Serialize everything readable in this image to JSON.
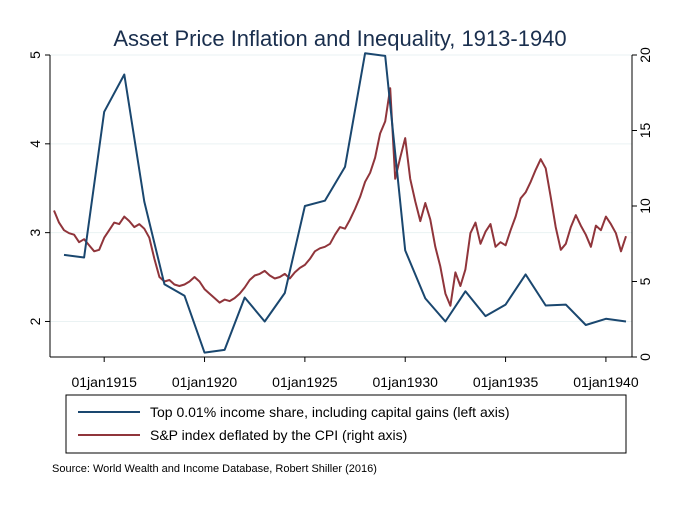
{
  "chart_data": {
    "type": "line",
    "title": "Asset Price Inflation and Inequality, 1913-1940",
    "x_range": [
      1912.3,
      1941.3
    ],
    "x_ticks": [
      {
        "value": 1915,
        "label": "01jan1915"
      },
      {
        "value": 1920,
        "label": "01jan1920"
      },
      {
        "value": 1925,
        "label": "01jan1925"
      },
      {
        "value": 1930,
        "label": "01jan1930"
      },
      {
        "value": 1935,
        "label": "01jan1935"
      },
      {
        "value": 1940,
        "label": "01jan1940"
      }
    ],
    "y_left": {
      "ylim": [
        1.6,
        5.0
      ],
      "ticks": [
        2,
        3,
        4,
        5
      ]
    },
    "y_right": {
      "ylim": [
        0,
        20
      ],
      "ticks": [
        0,
        5,
        10,
        15,
        20
      ]
    },
    "grid": true,
    "legend_position": "bottom",
    "series": [
      {
        "name": "Top 0.01% income share, including capital gains (left axis)",
        "axis": "left",
        "color": "#1a476f",
        "x": [
          1913,
          1914,
          1915,
          1916,
          1917,
          1918,
          1919,
          1920,
          1921,
          1922,
          1923,
          1924,
          1925,
          1926,
          1927,
          1928,
          1929,
          1930,
          1931,
          1932,
          1933,
          1934,
          1935,
          1936,
          1937,
          1938,
          1939,
          1940,
          1941
        ],
        "values": [
          2.75,
          2.72,
          4.36,
          4.78,
          3.35,
          2.42,
          2.29,
          1.65,
          1.68,
          2.27,
          2.0,
          2.32,
          3.3,
          3.36,
          3.74,
          5.02,
          4.99,
          2.8,
          2.26,
          2.0,
          2.34,
          2.06,
          2.19,
          2.53,
          2.18,
          2.19,
          1.96,
          2.03,
          2.0
        ]
      },
      {
        "name": "S&P index deflated by the CPI (right axis)",
        "axis": "right",
        "color": "#90353b",
        "x": [
          1912.5,
          1912.75,
          1913.0,
          1913.25,
          1913.5,
          1913.75,
          1914.0,
          1914.25,
          1914.5,
          1914.75,
          1915.0,
          1915.25,
          1915.5,
          1915.75,
          1916.0,
          1916.25,
          1916.5,
          1916.75,
          1917.0,
          1917.25,
          1917.5,
          1917.75,
          1918.0,
          1918.25,
          1918.5,
          1918.75,
          1919.0,
          1919.25,
          1919.5,
          1919.75,
          1920.0,
          1920.25,
          1920.5,
          1920.75,
          1921.0,
          1921.25,
          1921.5,
          1921.75,
          1922.0,
          1922.25,
          1922.5,
          1922.75,
          1923.0,
          1923.25,
          1923.5,
          1923.75,
          1924.0,
          1924.25,
          1924.5,
          1924.75,
          1925.0,
          1925.25,
          1925.5,
          1925.75,
          1926.0,
          1926.25,
          1926.5,
          1926.75,
          1927.0,
          1927.25,
          1927.5,
          1927.75,
          1928.0,
          1928.25,
          1928.5,
          1928.75,
          1929.0,
          1929.25,
          1929.5,
          1929.75,
          1930.0,
          1930.25,
          1930.5,
          1930.75,
          1931.0,
          1931.25,
          1931.5,
          1931.75,
          1932.0,
          1932.25,
          1932.5,
          1932.75,
          1933.0,
          1933.25,
          1933.5,
          1933.75,
          1934.0,
          1934.25,
          1934.5,
          1934.75,
          1935.0,
          1935.25,
          1935.5,
          1935.75,
          1936.0,
          1936.25,
          1936.5,
          1936.75,
          1937.0,
          1937.25,
          1937.5,
          1937.75,
          1938.0,
          1938.25,
          1938.5,
          1938.75,
          1939.0,
          1939.25,
          1939.5,
          1939.75,
          1940.0,
          1940.25,
          1940.5,
          1940.75,
          1941.0
        ],
        "values": [
          9.7,
          8.9,
          8.4,
          8.2,
          8.1,
          7.6,
          7.8,
          7.4,
          7.0,
          7.1,
          7.9,
          8.4,
          8.9,
          8.8,
          9.3,
          9.0,
          8.6,
          8.8,
          8.5,
          7.9,
          6.5,
          5.3,
          5.0,
          5.1,
          4.8,
          4.7,
          4.8,
          5.0,
          5.3,
          5.0,
          4.5,
          4.2,
          3.9,
          3.6,
          3.8,
          3.7,
          3.9,
          4.2,
          4.6,
          5.1,
          5.4,
          5.5,
          5.7,
          5.4,
          5.2,
          5.3,
          5.5,
          5.2,
          5.6,
          5.9,
          6.1,
          6.5,
          7.0,
          7.2,
          7.3,
          7.5,
          8.1,
          8.6,
          8.5,
          9.1,
          9.8,
          10.6,
          11.6,
          12.2,
          13.2,
          14.8,
          15.6,
          17.8,
          11.8,
          13.2,
          14.5,
          11.8,
          10.3,
          9.0,
          10.2,
          9.1,
          7.3,
          6.0,
          4.2,
          3.4,
          5.6,
          4.7,
          5.8,
          8.2,
          8.9,
          7.5,
          8.3,
          8.8,
          7.3,
          7.6,
          7.4,
          8.4,
          9.3,
          10.5,
          10.9,
          11.6,
          12.4,
          13.1,
          12.5,
          10.6,
          8.6,
          7.1,
          7.5,
          8.6,
          9.4,
          8.7,
          8.1,
          7.3,
          8.7,
          8.4,
          9.3,
          8.8,
          8.2,
          7.0,
          8.0
        ]
      }
    ]
  },
  "source_note": "Source: World Wealth and Income Database, Robert Shiller (2016)"
}
